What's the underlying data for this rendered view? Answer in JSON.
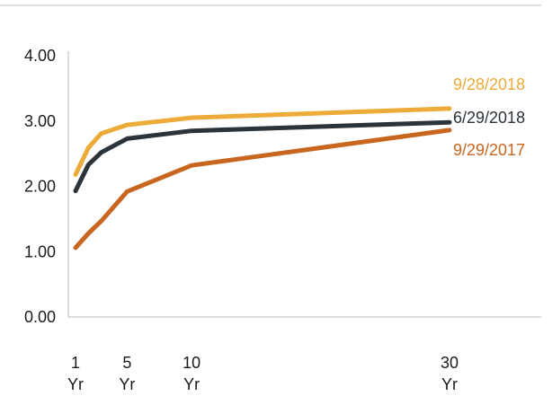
{
  "chart_data": {
    "type": "line",
    "x": [
      1,
      2,
      3,
      5,
      10,
      30
    ],
    "x_ticks": [
      {
        "value": 1,
        "line1": "1",
        "line2": "Yr"
      },
      {
        "value": 5,
        "line1": "5",
        "line2": "Yr"
      },
      {
        "value": 10,
        "line1": "10",
        "line2": "Yr"
      },
      {
        "value": 30,
        "line1": "30",
        "line2": "Yr"
      }
    ],
    "y_ticks": [
      "0.00",
      "1.00",
      "2.00",
      "3.00",
      "4.00"
    ],
    "ylim": [
      0,
      4
    ],
    "xlim": [
      1,
      30
    ],
    "grid": false,
    "legend": "right, inline labels",
    "series": [
      {
        "name": "9/28/2018",
        "color": "#EDAB39",
        "values": [
          2.18,
          2.59,
          2.81,
          2.94,
          3.05,
          3.19
        ]
      },
      {
        "name": "6/29/2018",
        "color": "#2B333B",
        "values": [
          1.93,
          2.33,
          2.52,
          2.73,
          2.85,
          2.98
        ]
      },
      {
        "name": "9/29/2017",
        "color": "#C8651E",
        "values": [
          1.06,
          1.28,
          1.47,
          1.92,
          2.32,
          2.86
        ]
      }
    ]
  }
}
